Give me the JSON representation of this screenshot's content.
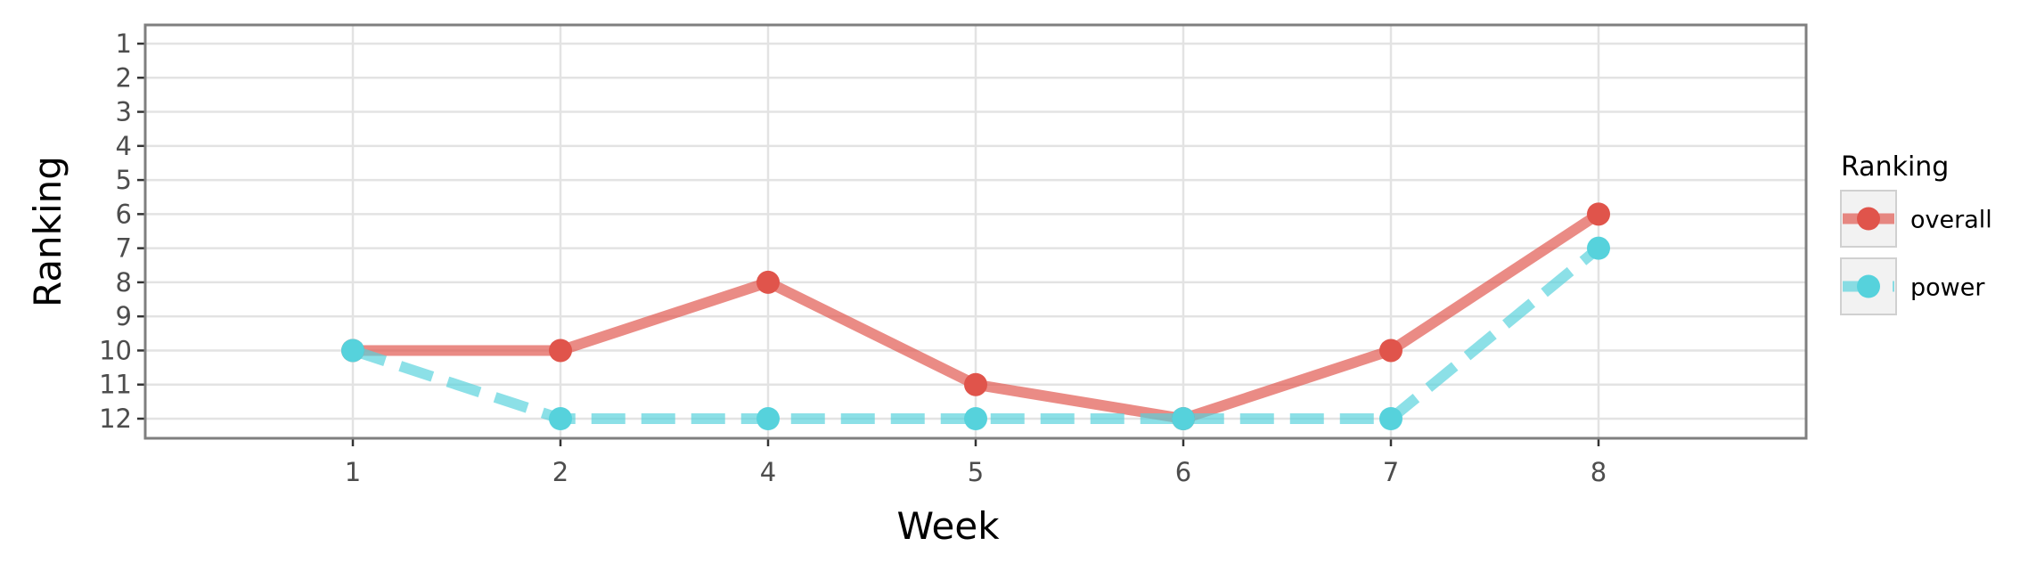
{
  "chart_data": {
    "type": "line",
    "xlabel": "Week",
    "ylabel": "Ranking",
    "x": [
      1,
      2,
      4,
      5,
      6,
      7,
      8
    ],
    "x_tick_labels": [
      "1",
      "2",
      "4",
      "5",
      "6",
      "7",
      "8"
    ],
    "y_ticks": [
      1,
      2,
      3,
      4,
      5,
      6,
      7,
      8,
      9,
      10,
      11,
      12
    ],
    "y_reversed": true,
    "grid": true,
    "legend": {
      "title": "Ranking",
      "position": "right"
    },
    "series": [
      {
        "name": "overall",
        "values": [
          10,
          10,
          8,
          11,
          12,
          10,
          6
        ],
        "color": "#e0544b",
        "line_style": "solid"
      },
      {
        "name": "power",
        "values": [
          10,
          12,
          12,
          12,
          12,
          12,
          7
        ],
        "color": "#56d2dc",
        "line_style": "dashed"
      }
    ]
  }
}
